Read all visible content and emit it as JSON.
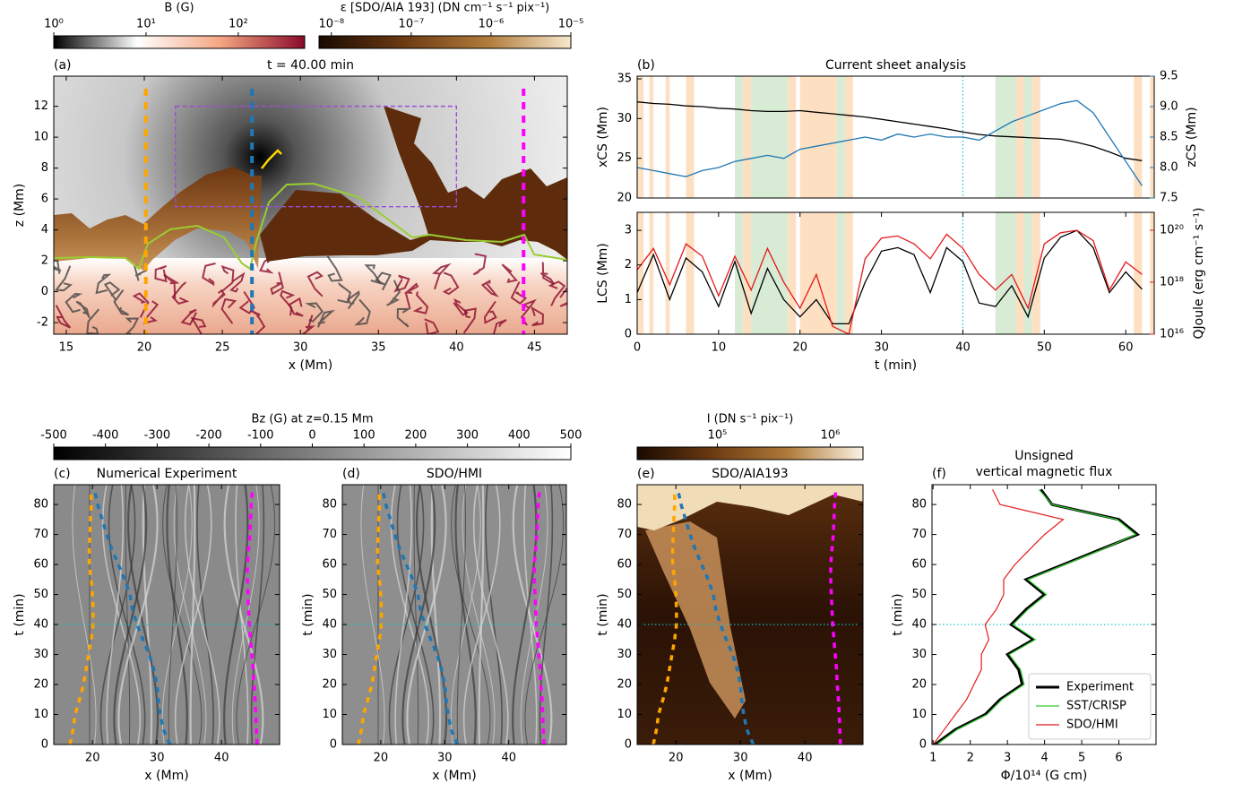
{
  "chart_data": [
    {
      "type": "image",
      "label": "(a)",
      "title": "t = 40.00 min",
      "xlabel": "x (Mm)",
      "ylabel": "z (Mm)",
      "xlim": [
        14.2,
        47.1
      ],
      "ylim": [
        -2.75,
        13.95
      ],
      "xticks": [
        15,
        20,
        25,
        30,
        35,
        40,
        45
      ],
      "yticks": [
        -2,
        0,
        2,
        4,
        6,
        8,
        10,
        12
      ],
      "markers": {
        "x": [
          20.1,
          26.9,
          44.3
        ],
        "colors": [
          "#ffa500",
          "#1f77b4",
          "#ff00ff"
        ]
      },
      "box": {
        "x": [
          22,
          40
        ],
        "y": [
          5.5,
          12
        ],
        "color": "#9b4dd8"
      },
      "colorbars": [
        {
          "label": "B (G)",
          "log": true,
          "lim": [
            1,
            525
          ],
          "ticks": [
            {
              "value": 1,
              "label": "10⁰"
            },
            {
              "value": 10,
              "label": "10¹"
            },
            {
              "value": 100,
              "label": "10²"
            }
          ],
          "colors": [
            "#000000",
            "#ffffff",
            "#f4a582",
            "#8b0a2a"
          ]
        },
        {
          "label": "ε [SDO/AIA 193] (DN cm⁻¹ s⁻¹ pix⁻¹)",
          "log": true,
          "lim": [
            7e-09,
            1e-05
          ],
          "ticks": [
            {
              "value": 1e-08,
              "label": "10⁻⁸"
            },
            {
              "value": 1e-07,
              "label": "10⁻⁷"
            },
            {
              "value": 1e-06,
              "label": "10⁻⁶"
            },
            {
              "value": 1e-05,
              "label": "10⁻⁵"
            }
          ],
          "colors": [
            "#1a0a00",
            "#6b3a12",
            "#b07a3a",
            "#f7e8cc"
          ]
        }
      ]
    },
    {
      "type": "line",
      "label": "(b)",
      "title": "Current sheet analysis",
      "xlim": [
        0,
        63.5
      ],
      "x": [
        0,
        2,
        4,
        6,
        8,
        10,
        12,
        14,
        16,
        18,
        20,
        22,
        24,
        26,
        28,
        30,
        32,
        34,
        36,
        38,
        40,
        42,
        44,
        46,
        48,
        50,
        52,
        54,
        56,
        58,
        60,
        62
      ],
      "ylabel": "xCS (Mm)",
      "ylim": [
        20,
        35.34
      ],
      "yticks": [
        20,
        25,
        30,
        35
      ],
      "y2label": "zCS (Mm)",
      "y2lim": [
        7.5,
        9.5
      ],
      "y2ticks": [
        7.5,
        {
          "value": 8,
          "label": "8.0"
        },
        8.5,
        {
          "value": 9,
          "label": "9.0"
        },
        9.5
      ],
      "vline": 40,
      "spans": [
        {
          "color": "#fde0c2",
          "ranges": [
            [
              0,
              0.8
            ],
            [
              1.5,
              2
            ],
            [
              3.5,
              4
            ],
            [
              6,
              7
            ],
            [
              13,
              14
            ],
            [
              18.5,
              19.5
            ],
            [
              20,
              24.5
            ],
            [
              25.5,
              26.5
            ],
            [
              46.5,
              47.5
            ],
            [
              48.5,
              49.5
            ],
            [
              61,
              62
            ],
            [
              63,
              63.5
            ]
          ]
        },
        {
          "color": "#d7ebd5",
          "ranges": [
            [
              12,
              13
            ],
            [
              14,
              18.5
            ],
            [
              24.5,
              25.5
            ],
            [
              44,
              46.5
            ],
            [
              47.5,
              48.5
            ]
          ]
        }
      ],
      "series": [
        {
          "color": "#000000",
          "values": [
            32.1,
            31.9,
            31.8,
            31.6,
            31.5,
            31.3,
            31.2,
            31.0,
            30.9,
            30.9,
            31.0,
            30.8,
            30.6,
            30.4,
            30.2,
            29.9,
            29.6,
            29.3,
            29.0,
            28.7,
            28.3,
            28.0,
            27.8,
            27.7,
            27.6,
            27.5,
            27.4,
            27.0,
            26.5,
            25.8,
            25.0,
            24.7
          ]
        },
        {
          "color": "#1f77b4",
          "axis": "y2",
          "values": [
            8.0,
            7.95,
            7.9,
            7.85,
            7.95,
            8.0,
            8.1,
            8.15,
            8.2,
            8.15,
            8.3,
            8.35,
            8.4,
            8.45,
            8.5,
            8.45,
            8.55,
            8.5,
            8.55,
            8.5,
            8.5,
            8.45,
            8.6,
            8.75,
            8.85,
            8.95,
            9.05,
            9.1,
            8.9,
            8.5,
            8.1,
            7.7
          ]
        }
      ]
    },
    {
      "type": "line",
      "xlabel": "t (min)",
      "xlim": [
        0,
        63.5
      ],
      "xticks": [
        0,
        10,
        20,
        30,
        40,
        50,
        60
      ],
      "x": [
        0,
        2,
        4,
        6,
        8,
        10,
        12,
        14,
        16,
        18,
        20,
        22,
        24,
        26,
        28,
        30,
        32,
        34,
        36,
        38,
        40,
        42,
        44,
        46,
        48,
        50,
        52,
        54,
        56,
        58,
        60,
        62
      ],
      "ylabel": "LCS (Mm)",
      "ylim": [
        0,
        3.52
      ],
      "yticks": [
        0,
        1,
        2,
        3
      ],
      "y2label": "QJoule (erg cm⁻¹ s⁻¹)",
      "y2log": true,
      "y2lim": [
        1e+16,
        4.9e+20
      ],
      "y2ticks": [
        {
          "value": 1e+16,
          "label": "10¹⁶"
        },
        {
          "value": 1e+18,
          "label": "10¹⁸"
        },
        {
          "value": 1e+20,
          "label": "10²⁰"
        }
      ],
      "vline": 40,
      "series": [
        {
          "color": "#000000",
          "values": [
            1.2,
            2.3,
            1.0,
            2.2,
            1.8,
            0.8,
            2.1,
            0.6,
            1.9,
            1.0,
            0.5,
            1.0,
            0.3,
            0.3,
            1.5,
            2.4,
            2.5,
            2.3,
            1.2,
            2.5,
            2.1,
            0.9,
            0.8,
            1.4,
            0.5,
            2.2,
            2.8,
            3.0,
            2.5,
            1.2,
            1.8,
            1.3
          ]
        },
        {
          "color": "#e41a1c",
          "axis": "y2",
          "values": [
            3e+18,
            2e+19,
            8e+17,
            3e+19,
            1e+19,
            3e+17,
            1e+19,
            5e+17,
            2e+19,
            1e+18,
            1e+17,
            2e+18,
            2e+16,
            1e+16,
            8e+18,
            5e+19,
            6e+19,
            3e+19,
            8e+18,
            7e+19,
            2e+19,
            2e+18,
            5e+17,
            2e+18,
            1e+17,
            3e+19,
            8e+19,
            1e+20,
            4e+19,
            5e+17,
            6e+18,
            2e+18
          ]
        }
      ]
    },
    {
      "type": "image",
      "label": "(c)",
      "title": "Numerical Experiment",
      "xlabel": "x (Mm)",
      "ylabel": "t (min)",
      "xlim": [
        14,
        49
      ],
      "ylim": [
        0,
        86.6
      ],
      "xticks": [
        20,
        30,
        40
      ],
      "yticks": [
        0,
        10,
        20,
        30,
        40,
        50,
        60,
        70,
        80
      ],
      "hline": 40,
      "tracks": {
        "y": [
          0,
          5,
          10,
          15,
          20,
          25,
          30,
          35,
          40,
          45,
          50,
          55,
          60,
          65,
          70,
          75,
          80,
          85
        ],
        "series": [
          {
            "color": "#ffa500",
            "values": [
              16.5,
              17,
              17.3,
              18,
              18.6,
              19,
              19.4,
              19.8,
              20.1,
              20.1,
              20,
              19.8,
              19.5,
              19.5,
              19.6,
              19.7,
              19.8,
              19.8
            ]
          },
          {
            "color": "#1f77b4",
            "values": [
              32,
              31,
              30.5,
              30.2,
              30,
              29.5,
              28.8,
              27.8,
              26.9,
              26.2,
              25.8,
              25,
              24,
              23,
              22.2,
              21.5,
              20.8,
              20.3
            ]
          },
          {
            "color": "#ff00ff",
            "values": [
              45.5,
              45.4,
              45.3,
              45.2,
              45,
              44.9,
              44.7,
              44.5,
              44.3,
              44.2,
              44.1,
              44,
              44,
              44.2,
              44.4,
              44.5,
              44.6,
              44.8
            ]
          }
        ]
      },
      "colorbars": [
        {
          "label": "Bz (G) at z=0.15 Mm",
          "lim": [
            -500,
            500
          ],
          "ticks": [
            -500,
            -400,
            -300,
            -200,
            -100,
            0,
            100,
            200,
            300,
            400,
            500
          ],
          "colors": [
            "#000000",
            "#808080",
            "#ffffff"
          ]
        }
      ]
    },
    {
      "type": "image",
      "label": "(d)",
      "title": "SDO/HMI",
      "xlabel": "x (Mm)",
      "ylabel": "t (min)",
      "xlim": [
        14,
        49
      ],
      "ylim": [
        0,
        86.6
      ],
      "xticks": [
        20,
        30,
        40
      ],
      "yticks": [
        0,
        10,
        20,
        30,
        40,
        50,
        60,
        70,
        80
      ],
      "hline": 40
    },
    {
      "type": "image",
      "label": "(e)",
      "title": "SDO/AIA193",
      "xlabel": "x (Mm)",
      "ylabel": "t (min)",
      "xlim": [
        14,
        49
      ],
      "ylim": [
        0,
        86.6
      ],
      "xticks": [
        20,
        30,
        40
      ],
      "yticks": [
        0,
        10,
        20,
        30,
        40,
        50,
        60,
        70,
        80
      ],
      "hline": 40,
      "colorbars": [
        {
          "label": "I (DN s⁻¹ pix⁻¹)",
          "log": true,
          "lim": [
            19500,
            1950000
          ],
          "ticks": [
            {
              "value": 100000,
              "label": "10⁵"
            },
            {
              "value": 1000000,
              "label": "10⁶"
            }
          ],
          "colors": [
            "#1a0a00",
            "#6b3a12",
            "#b07a3a",
            "#fbf3e4"
          ]
        }
      ]
    },
    {
      "type": "line",
      "label": "(f)",
      "title": [
        "Unsigned",
        "vertical magnetic flux"
      ],
      "xlabel": "Φ/10¹⁴ (G cm)",
      "ylabel": "t (min)",
      "xlim": [
        0.97,
        7
      ],
      "xticks": [
        1,
        2,
        3,
        4,
        5,
        6
      ],
      "ylim": [
        0,
        86.6
      ],
      "yticks": [
        0,
        10,
        20,
        30,
        40,
        50,
        60,
        70,
        80
      ],
      "hline": 40,
      "legend": "lower right",
      "y": [
        0,
        5,
        10,
        15,
        20,
        25,
        30,
        35,
        40,
        45,
        50,
        55,
        60,
        65,
        70,
        75,
        80,
        85
      ],
      "series": [
        {
          "name": "Experiment",
          "color": "#000000",
          "width": 3,
          "values": [
            1.05,
            1.6,
            2.4,
            2.8,
            3.4,
            3.3,
            3.0,
            3.7,
            3.1,
            3.5,
            4.0,
            3.5,
            4.5,
            5.5,
            6.5,
            6.0,
            4.2,
            3.9
          ]
        },
        {
          "name": "SST/CRISP",
          "color": "#33cc33",
          "width": 1.2,
          "values": [
            1.1,
            1.65,
            2.45,
            2.85,
            3.45,
            3.35,
            3.05,
            3.75,
            3.15,
            3.55,
            4.05,
            3.55,
            4.55,
            5.55,
            6.45,
            5.95,
            4.2,
            3.85
          ]
        },
        {
          "name": "SDO/HMI",
          "color": "#e41a1c",
          "width": 1.2,
          "values": [
            1.0,
            1.3,
            1.6,
            1.9,
            2.1,
            2.3,
            2.3,
            2.5,
            2.4,
            2.7,
            2.9,
            2.9,
            3.2,
            3.6,
            4.0,
            4.5,
            2.8,
            2.6
          ]
        }
      ]
    }
  ]
}
